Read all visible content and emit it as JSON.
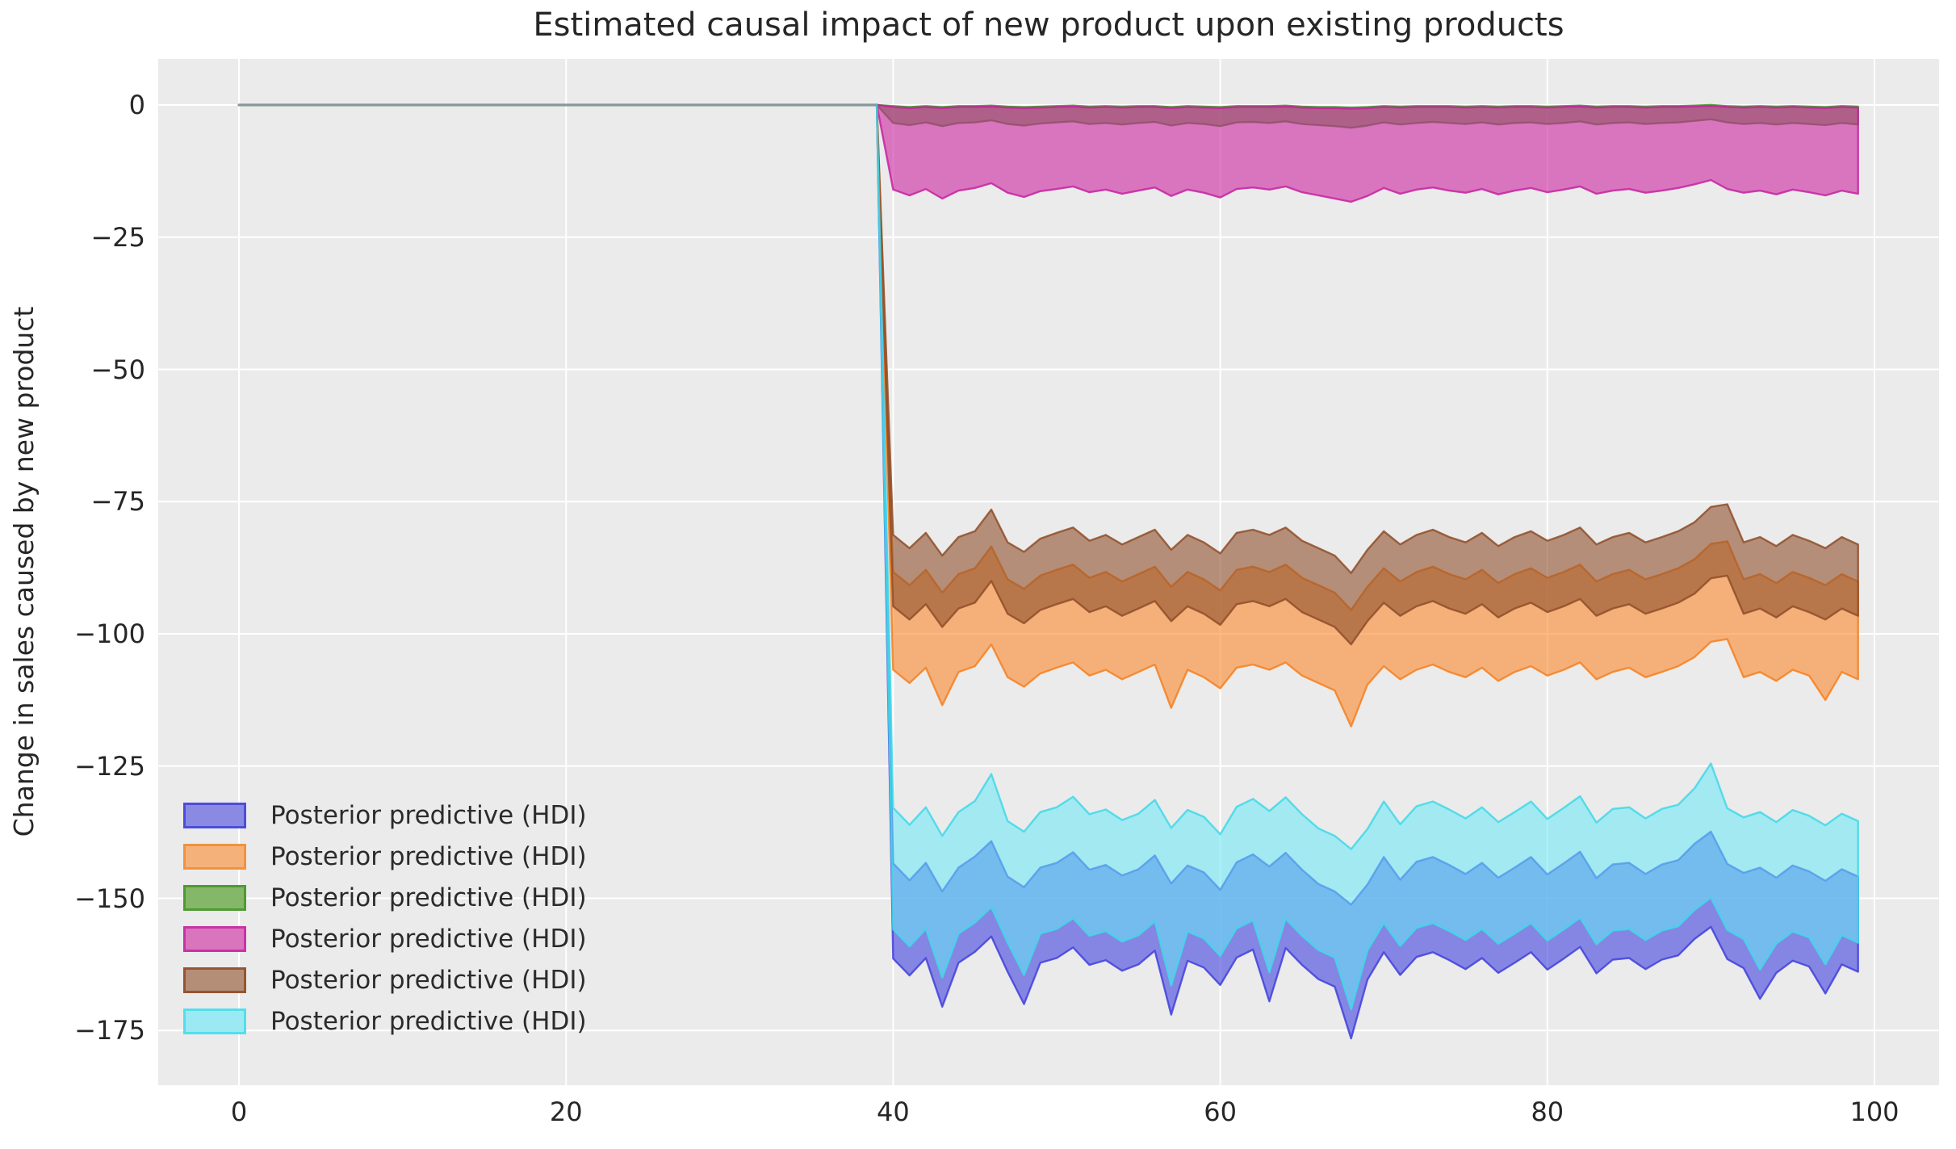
{
  "title": "Estimated causal impact of new product upon existing products",
  "ylabel": "Change in sales caused by new product",
  "axes": {
    "background": "#ebebeb",
    "gridline_color": "#ffffff",
    "tick_color": "#262626",
    "x_ticks": [
      {
        "label": "0",
        "value": 0
      },
      {
        "label": "20",
        "value": 20
      },
      {
        "label": "40",
        "value": 40
      },
      {
        "label": "60",
        "value": 60
      },
      {
        "label": "80",
        "value": 80
      },
      {
        "label": "100",
        "value": 100
      }
    ],
    "y_ticks": [
      {
        "label": "0",
        "value": 0
      },
      {
        "label": "−25",
        "value": -25
      },
      {
        "label": "−50",
        "value": -50
      },
      {
        "label": "−75",
        "value": -75
      },
      {
        "label": "−100",
        "value": -100
      },
      {
        "label": "−125",
        "value": -125
      },
      {
        "label": "−150",
        "value": -150
      },
      {
        "label": "−175",
        "value": -175
      }
    ]
  },
  "legend": {
    "items": [
      {
        "label": "Posterior predictive (HDI)",
        "fill": "#8a8ae4",
        "edge": "#4d4dd8"
      },
      {
        "label": "Posterior predictive (HDI)",
        "fill": "#f5b17a",
        "edge": "#f0923f"
      },
      {
        "label": "Posterior predictive (HDI)",
        "fill": "#85b768",
        "edge": "#4f9a33"
      },
      {
        "label": "Posterior predictive (HDI)",
        "fill": "#d975bd",
        "edge": "#c932a6"
      },
      {
        "label": "Posterior predictive (HDI)",
        "fill": "#b58e78",
        "edge": "#96552f"
      },
      {
        "label": "Posterior predictive (HDI)",
        "fill": "#9be9f2",
        "edge": "#52dfec"
      }
    ]
  },
  "pre_period": {
    "x_start": 0,
    "x_end": 39,
    "value": 0,
    "line_color": "#87989b"
  },
  "chart_data": {
    "type": "area",
    "title": "Estimated causal impact of new product upon existing products",
    "xlabel": "",
    "ylabel": "Change in sales caused by new product",
    "xlim": [
      -5,
      104
    ],
    "ylim": [
      -186,
      9
    ],
    "grid": true,
    "legend_position": "lower left",
    "treatment_x": 40,
    "x_pre": [
      0,
      39
    ],
    "pre_value": 0,
    "x_post": [
      40,
      41,
      42,
      43,
      44,
      45,
      46,
      47,
      48,
      49,
      50,
      51,
      52,
      53,
      54,
      55,
      56,
      57,
      58,
      59,
      60,
      61,
      62,
      63,
      64,
      65,
      66,
      67,
      68,
      69,
      70,
      71,
      72,
      73,
      74,
      75,
      76,
      77,
      78,
      79,
      80,
      81,
      82,
      83,
      84,
      85,
      86,
      87,
      88,
      89,
      90,
      91,
      92,
      93,
      94,
      95,
      96,
      97,
      98,
      99
    ],
    "series": [
      {
        "key": "blue",
        "name": "Posterior predictive (HDI)",
        "color": "#4141e0",
        "stroke": "#4040dd",
        "alpha": 0.6,
        "top": [
          -143.4,
          -146.6,
          -143.3,
          -148.7,
          -144.2,
          -142.1,
          -139.2,
          -145.9,
          -147.9,
          -144.2,
          -143.3,
          -141.3,
          -144.6,
          -143.7,
          -145.7,
          -144.5,
          -141.9,
          -147.2,
          -143.8,
          -145.1,
          -148.4,
          -143.2,
          -141.7,
          -144.0,
          -141.4,
          -144.6,
          -147.3,
          -148.7,
          -151.2,
          -147.4,
          -142.2,
          -146.5,
          -143.1,
          -142.2,
          -143.7,
          -145.4,
          -143.3,
          -146.1,
          -144.2,
          -142.2,
          -145.5,
          -143.4,
          -141.2,
          -146.2,
          -143.6,
          -143.3,
          -145.4,
          -143.6,
          -142.8,
          -139.7,
          -137.4,
          -143.5,
          -145.2,
          -144.2,
          -146.1,
          -143.8,
          -144.9,
          -146.7,
          -144.5,
          -145.9
        ],
        "bottom": [
          -161.4,
          -164.6,
          -161.3,
          -170.5,
          -162.2,
          -160.1,
          -157.2,
          -163.9,
          -170.0,
          -162.2,
          -161.3,
          -159.3,
          -162.6,
          -161.7,
          -163.7,
          -162.5,
          -159.9,
          -172.0,
          -161.8,
          -163.1,
          -166.4,
          -161.2,
          -159.7,
          -169.5,
          -159.4,
          -162.6,
          -165.3,
          -166.7,
          -176.5,
          -165.4,
          -160.2,
          -164.5,
          -161.1,
          -160.2,
          -161.7,
          -163.4,
          -161.3,
          -164.1,
          -162.2,
          -160.2,
          -163.5,
          -161.4,
          -159.2,
          -164.2,
          -161.6,
          -161.3,
          -163.4,
          -161.6,
          -160.8,
          -157.7,
          -155.4,
          -161.5,
          -163.2,
          -169.0,
          -164.1,
          -161.8,
          -162.9,
          -168.0,
          -162.5,
          -163.9
        ]
      },
      {
        "key": "orange",
        "name": "Posterior predictive (HDI)",
        "color": "#fb892e",
        "stroke": "#f58020",
        "alpha": 0.6,
        "top": [
          -88.3,
          -90.8,
          -87.9,
          -92.2,
          -88.7,
          -87.6,
          -83.5,
          -89.7,
          -91.5,
          -89.0,
          -87.9,
          -86.9,
          -89.4,
          -88.3,
          -90.1,
          -88.7,
          -87.3,
          -91.1,
          -88.3,
          -89.7,
          -91.8,
          -87.9,
          -87.3,
          -88.3,
          -86.9,
          -89.4,
          -90.8,
          -92.2,
          -95.5,
          -91.1,
          -87.6,
          -90.1,
          -88.3,
          -87.3,
          -88.7,
          -89.7,
          -87.9,
          -90.4,
          -88.7,
          -87.6,
          -89.4,
          -88.3,
          -86.9,
          -90.1,
          -88.7,
          -87.9,
          -89.7,
          -88.7,
          -87.6,
          -85.9,
          -83.0,
          -82.5,
          -89.7,
          -88.7,
          -90.4,
          -88.3,
          -89.4,
          -90.8,
          -88.7,
          -90.1
        ],
        "bottom": [
          -106.8,
          -109.3,
          -106.4,
          -113.5,
          -107.2,
          -106.1,
          -102.0,
          -108.2,
          -110.0,
          -107.5,
          -106.4,
          -105.4,
          -107.9,
          -106.8,
          -108.6,
          -107.2,
          -105.8,
          -114.0,
          -106.8,
          -108.2,
          -110.3,
          -106.4,
          -105.8,
          -106.8,
          -105.4,
          -107.9,
          -109.3,
          -110.7,
          -117.5,
          -109.6,
          -106.1,
          -108.6,
          -106.8,
          -105.8,
          -107.2,
          -108.2,
          -106.4,
          -108.9,
          -107.2,
          -106.1,
          -107.9,
          -106.8,
          -105.4,
          -108.6,
          -107.2,
          -106.4,
          -108.2,
          -107.2,
          -106.1,
          -104.4,
          -101.5,
          -101.0,
          -108.2,
          -107.2,
          -108.9,
          -106.8,
          -107.9,
          -112.5,
          -107.2,
          -108.6
        ]
      },
      {
        "key": "green",
        "name": "Posterior predictive (HDI)",
        "color": "#3d9410",
        "stroke": "#3d8f20",
        "alpha": 0.6,
        "top": [
          -0.2,
          -0.4,
          -0.2,
          -0.4,
          -0.2,
          -0.2,
          -0.1,
          -0.3,
          -0.4,
          -0.3,
          -0.2,
          -0.1,
          -0.3,
          -0.2,
          -0.3,
          -0.2,
          -0.2,
          -0.4,
          -0.2,
          -0.3,
          -0.4,
          -0.2,
          -0.2,
          -0.2,
          -0.1,
          -0.3,
          -0.4,
          -0.4,
          -0.5,
          -0.4,
          -0.2,
          -0.3,
          -0.2,
          -0.2,
          -0.2,
          -0.3,
          -0.2,
          -0.3,
          -0.2,
          -0.2,
          -0.3,
          -0.2,
          -0.1,
          -0.3,
          -0.2,
          -0.2,
          -0.3,
          -0.2,
          -0.2,
          -0.1,
          0.0,
          -0.2,
          -0.3,
          -0.2,
          -0.3,
          -0.2,
          -0.3,
          -0.4,
          -0.2,
          -0.3
        ],
        "bottom": [
          -3.4,
          -3.8,
          -3.3,
          -4.0,
          -3.4,
          -3.3,
          -2.9,
          -3.6,
          -3.9,
          -3.5,
          -3.3,
          -3.1,
          -3.6,
          -3.4,
          -3.7,
          -3.4,
          -3.2,
          -3.9,
          -3.4,
          -3.6,
          -4.0,
          -3.3,
          -3.2,
          -3.4,
          -3.1,
          -3.6,
          -3.8,
          -4.0,
          -4.3,
          -3.9,
          -3.3,
          -3.7,
          -3.4,
          -3.2,
          -3.4,
          -3.6,
          -3.3,
          -3.7,
          -3.4,
          -3.3,
          -3.6,
          -3.4,
          -3.1,
          -3.7,
          -3.4,
          -3.3,
          -3.6,
          -3.4,
          -3.3,
          -3.0,
          -2.7,
          -3.3,
          -3.6,
          -3.4,
          -3.7,
          -3.4,
          -3.6,
          -3.8,
          -3.4,
          -3.7
        ]
      },
      {
        "key": "pink",
        "name": "Posterior predictive (HDI)",
        "color": "#cd26a0",
        "stroke": "#c622a0",
        "alpha": 0.6,
        "top": [
          -0.4,
          -0.6,
          -0.4,
          -0.6,
          -0.4,
          -0.4,
          -0.3,
          -0.5,
          -0.6,
          -0.5,
          -0.4,
          -0.3,
          -0.5,
          -0.4,
          -0.5,
          -0.4,
          -0.4,
          -0.6,
          -0.4,
          -0.5,
          -0.6,
          -0.4,
          -0.4,
          -0.4,
          -0.3,
          -0.5,
          -0.6,
          -0.6,
          -0.7,
          -0.6,
          -0.4,
          -0.5,
          -0.4,
          -0.4,
          -0.4,
          -0.5,
          -0.4,
          -0.5,
          -0.4,
          -0.4,
          -0.5,
          -0.4,
          -0.3,
          -0.5,
          -0.4,
          -0.4,
          -0.5,
          -0.4,
          -0.4,
          -0.3,
          -0.2,
          -0.4,
          -0.5,
          -0.4,
          -0.5,
          -0.4,
          -0.5,
          -0.6,
          -0.4,
          -0.5
        ],
        "bottom": [
          -16.0,
          -17.1,
          -15.9,
          -17.7,
          -16.2,
          -15.7,
          -14.8,
          -16.6,
          -17.4,
          -16.3,
          -15.9,
          -15.4,
          -16.5,
          -16.0,
          -16.8,
          -16.2,
          -15.6,
          -17.2,
          -16.0,
          -16.6,
          -17.5,
          -15.9,
          -15.6,
          -16.0,
          -15.4,
          -16.5,
          -17.1,
          -17.7,
          -18.3,
          -17.2,
          -15.7,
          -16.8,
          -16.0,
          -15.6,
          -16.2,
          -16.6,
          -15.9,
          -16.9,
          -16.2,
          -15.7,
          -16.5,
          -16.0,
          -15.4,
          -16.8,
          -16.2,
          -15.9,
          -16.6,
          -16.2,
          -15.7,
          -15.0,
          -14.2,
          -15.9,
          -16.6,
          -16.2,
          -16.9,
          -16.0,
          -16.5,
          -17.1,
          -16.2,
          -16.8
        ]
      },
      {
        "key": "brown",
        "name": "Posterior predictive (HDI)",
        "color": "#90502c",
        "stroke": "#8f4e28",
        "alpha": 0.6,
        "top": [
          -81.3,
          -83.8,
          -80.9,
          -85.2,
          -81.7,
          -80.6,
          -76.5,
          -82.7,
          -84.5,
          -82.0,
          -80.9,
          -79.9,
          -82.4,
          -81.3,
          -83.1,
          -81.7,
          -80.3,
          -84.1,
          -81.3,
          -82.7,
          -84.8,
          -80.9,
          -80.3,
          -81.3,
          -79.9,
          -82.4,
          -83.8,
          -85.2,
          -88.5,
          -84.1,
          -80.6,
          -83.1,
          -81.3,
          -80.3,
          -81.7,
          -82.7,
          -80.9,
          -83.4,
          -81.7,
          -80.6,
          -82.4,
          -81.3,
          -79.9,
          -83.1,
          -81.7,
          -80.9,
          -82.7,
          -81.7,
          -80.6,
          -78.9,
          -76.0,
          -75.5,
          -82.7,
          -81.7,
          -83.4,
          -81.3,
          -82.4,
          -83.8,
          -81.7,
          -83.1
        ],
        "bottom": [
          -94.8,
          -97.3,
          -94.4,
          -98.7,
          -95.2,
          -94.1,
          -90.0,
          -96.2,
          -98.0,
          -95.5,
          -94.4,
          -93.4,
          -95.9,
          -94.8,
          -96.6,
          -95.2,
          -93.8,
          -97.6,
          -94.8,
          -96.2,
          -98.3,
          -94.4,
          -93.8,
          -94.8,
          -93.4,
          -95.9,
          -97.3,
          -98.7,
          -102.0,
          -97.6,
          -94.1,
          -96.6,
          -94.8,
          -93.8,
          -95.2,
          -96.2,
          -94.4,
          -96.9,
          -95.2,
          -94.1,
          -95.9,
          -94.8,
          -93.4,
          -96.6,
          -95.2,
          -94.4,
          -96.2,
          -95.2,
          -94.1,
          -92.4,
          -89.5,
          -89.0,
          -96.2,
          -95.2,
          -96.9,
          -94.8,
          -95.9,
          -97.3,
          -95.2,
          -96.6
        ]
      },
      {
        "key": "cyan",
        "name": "Posterior predictive (HDI)",
        "color": "#66e8f5",
        "stroke": "#3fd8e8",
        "alpha": 0.55,
        "top": [
          -132.9,
          -136.1,
          -132.8,
          -138.2,
          -133.7,
          -131.6,
          -126.5,
          -135.4,
          -137.4,
          -133.7,
          -132.8,
          -130.8,
          -134.1,
          -133.2,
          -135.2,
          -134.0,
          -131.4,
          -136.7,
          -133.3,
          -134.6,
          -137.9,
          -132.7,
          -131.2,
          -133.5,
          -130.9,
          -134.1,
          -136.8,
          -138.2,
          -140.7,
          -136.9,
          -131.7,
          -136.0,
          -132.6,
          -131.7,
          -133.2,
          -134.9,
          -132.8,
          -135.6,
          -133.7,
          -131.7,
          -135.0,
          -132.9,
          -130.7,
          -135.7,
          -133.1,
          -132.8,
          -134.9,
          -133.1,
          -132.3,
          -129.2,
          -124.5,
          -133.0,
          -134.7,
          -133.7,
          -135.6,
          -133.3,
          -134.4,
          -136.2,
          -134.0,
          -135.4
        ],
        "bottom": [
          -155.9,
          -159.1,
          -155.8,
          -165.0,
          -156.7,
          -154.6,
          -151.7,
          -158.4,
          -164.5,
          -156.7,
          -155.8,
          -153.8,
          -157.1,
          -156.2,
          -158.2,
          -157.0,
          -154.4,
          -166.5,
          -156.3,
          -157.6,
          -160.9,
          -155.7,
          -154.2,
          -164.0,
          -153.9,
          -157.1,
          -159.8,
          -161.2,
          -171.0,
          -159.9,
          -154.7,
          -159.0,
          -155.6,
          -154.7,
          -156.2,
          -157.9,
          -155.8,
          -158.6,
          -156.7,
          -154.7,
          -158.0,
          -155.9,
          -153.7,
          -158.7,
          -156.1,
          -155.8,
          -157.9,
          -156.1,
          -155.3,
          -152.2,
          -149.9,
          -156.0,
          -157.7,
          -163.5,
          -158.6,
          -156.3,
          -157.4,
          -162.5,
          -157.0,
          -158.4
        ]
      }
    ]
  }
}
